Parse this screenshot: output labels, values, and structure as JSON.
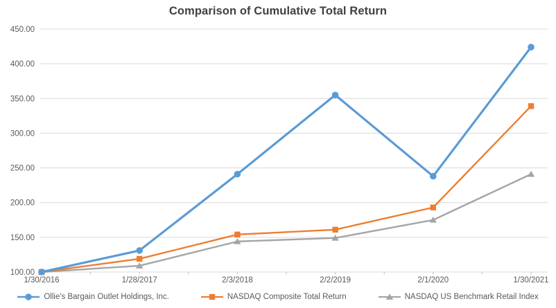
{
  "chart_data": {
    "type": "line",
    "title": "Comparison of Cumulative Total Return",
    "categories": [
      "1/30/2016",
      "1/28/2017",
      "2/3/2018",
      "2/2/2019",
      "2/1/2020",
      "1/30/2021"
    ],
    "series": [
      {
        "name": "Ollie's Bargain Outlet Holdings, Inc.",
        "slug": "ollies-bargain-outlet",
        "color": "#5B9BD5",
        "marker": "circle",
        "line_width": 3.2,
        "values": [
          100,
          131,
          241,
          355,
          238,
          424
        ]
      },
      {
        "name": "NASDAQ Composite Total Return",
        "slug": "nasdaq-composite",
        "color": "#ED7D31",
        "marker": "square",
        "line_width": 2.4,
        "values": [
          100,
          119,
          154,
          161,
          193,
          339
        ]
      },
      {
        "name": "NASDAQ US Benchmark Retail Index",
        "slug": "nasdaq-us-benchmark-retail",
        "color": "#A5A5A5",
        "marker": "triangle",
        "line_width": 2.4,
        "values": [
          100,
          109,
          144,
          149,
          175,
          241
        ]
      }
    ],
    "y_axis": {
      "min": 100,
      "max": 450,
      "step": 50,
      "tick_labels": [
        "100.00",
        "150.00",
        "200.00",
        "250.00",
        "300.00",
        "350.00",
        "400.00",
        "450.00"
      ]
    },
    "x_axis": {
      "tick_labels": [
        "1/30/2016",
        "1/28/2017",
        "2/3/2018",
        "2/2/2019",
        "2/1/2020",
        "1/30/2021"
      ]
    },
    "legend_position": "bottom",
    "grid": true,
    "colors": {
      "gridline": "#D9D9D9",
      "axis_line": "#D9D9D9",
      "tick_mark": "#BFBFBF",
      "axis_text": "#595959",
      "title_text": "#404040",
      "background": "#FFFFFF"
    }
  }
}
